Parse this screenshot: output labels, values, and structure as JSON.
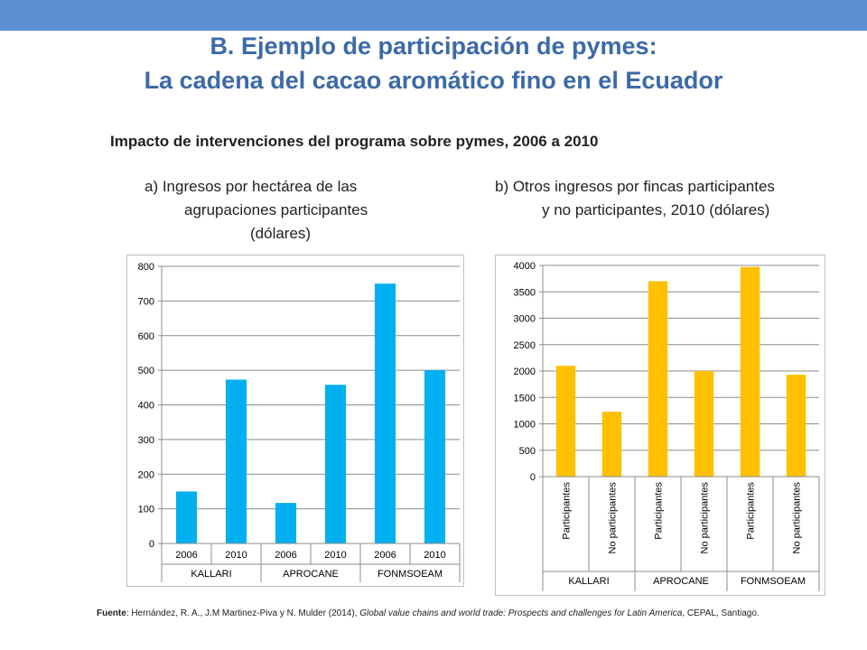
{
  "header": {
    "title_line1": "B. Ejemplo de participación de pymes:",
    "title_line2": "La cadena del cacao aromático fino en el Ecuador",
    "subtitle": "Impacto de intervenciones del programa sobre pymes, 2006 a 2010"
  },
  "colors": {
    "accent_bar": "#5b8fd2",
    "title": "#3c6aa8",
    "series_a": "#00b0f0",
    "series_b": "#ffc000"
  },
  "chart_a_caption": {
    "line1": "a)  Ingresos por hectárea de las",
    "line2": "agrupaciones participantes",
    "line3": "(dólares)"
  },
  "chart_b_caption": {
    "line1": "b) Otros ingresos por fincas participantes",
    "line2": "y no participantes, 2010 (dólares)"
  },
  "chart_data": [
    {
      "type": "bar",
      "title": "a)  Ingresos por hectárea de las agrupaciones participantes (dólares)",
      "ylim": [
        0,
        800
      ],
      "yticks": [
        0,
        100,
        200,
        300,
        400,
        500,
        600,
        700,
        800
      ],
      "grid": true,
      "legend": "none",
      "groups": [
        "KALLARI",
        "APROCANE",
        "FONMSOEAM"
      ],
      "categories": [
        "2006",
        "2010",
        "2006",
        "2010",
        "2006",
        "2010"
      ],
      "values": [
        150,
        473,
        117,
        458,
        750,
        500
      ]
    },
    {
      "type": "bar",
      "title": "b) Otros ingresos por fincas participantes y no participantes, 2010 (dólares)",
      "ylim": [
        0,
        4000
      ],
      "yticks": [
        0,
        500,
        1000,
        1500,
        2000,
        2500,
        3000,
        3500,
        4000
      ],
      "grid": true,
      "legend": "none",
      "groups": [
        "KALLARI",
        "APROCANE",
        "FONMSOEAM"
      ],
      "categories": [
        "Participantes",
        "No participantes",
        "Participantes",
        "No participantes",
        "Participantes",
        "No participantes"
      ],
      "values": [
        2100,
        1230,
        3700,
        2000,
        3970,
        1930
      ]
    }
  ],
  "footer": {
    "source_label": "Fuente",
    "source_text": ": Hernández, R. A., J.M Martinez-Piva y N. Mulder (2014), ",
    "source_title": "Global value chains and world trade: Prospects and challenges for Latin America",
    "source_tail": ", CEPAL, Santiago."
  }
}
